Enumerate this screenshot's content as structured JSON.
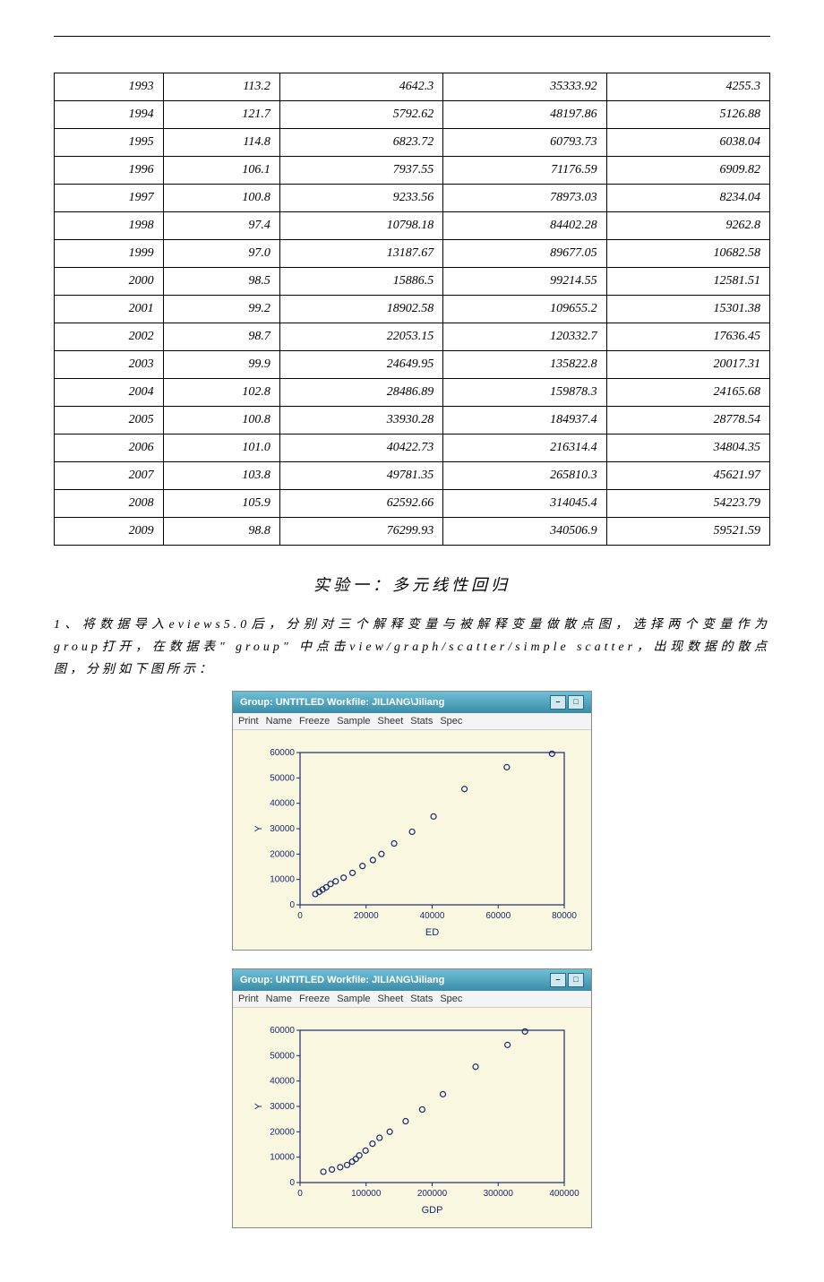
{
  "table": {
    "rows": [
      [
        "1993",
        "113.2",
        "4642.3",
        "35333.92",
        "4255.3"
      ],
      [
        "1994",
        "121.7",
        "5792.62",
        "48197.86",
        "5126.88"
      ],
      [
        "1995",
        "114.8",
        "6823.72",
        "60793.73",
        "6038.04"
      ],
      [
        "1996",
        "106.1",
        "7937.55",
        "71176.59",
        "6909.82"
      ],
      [
        "1997",
        "100.8",
        "9233.56",
        "78973.03",
        "8234.04"
      ],
      [
        "1998",
        "97.4",
        "10798.18",
        "84402.28",
        "9262.8"
      ],
      [
        "1999",
        "97.0",
        "13187.67",
        "89677.05",
        "10682.58"
      ],
      [
        "2000",
        "98.5",
        "15886.5",
        "99214.55",
        "12581.51"
      ],
      [
        "2001",
        "99.2",
        "18902.58",
        "109655.2",
        "15301.38"
      ],
      [
        "2002",
        "98.7",
        "22053.15",
        "120332.7",
        "17636.45"
      ],
      [
        "2003",
        "99.9",
        "24649.95",
        "135822.8",
        "20017.31"
      ],
      [
        "2004",
        "102.8",
        "28486.89",
        "159878.3",
        "24165.68"
      ],
      [
        "2005",
        "100.8",
        "33930.28",
        "184937.4",
        "28778.54"
      ],
      [
        "2006",
        "101.0",
        "40422.73",
        "216314.4",
        "34804.35"
      ],
      [
        "2007",
        "103.8",
        "49781.35",
        "265810.3",
        "45621.97"
      ],
      [
        "2008",
        "105.9",
        "62592.66",
        "314045.4",
        "54223.79"
      ],
      [
        "2009",
        "98.8",
        "76299.93",
        "340506.9",
        "59521.59"
      ]
    ]
  },
  "section_title": "实验一：多元线性回归",
  "body_text": "1、将数据导入eviews5.0后，分别对三个解释变量与被解释变量做散点图，选择两个变量作为group打开，在数据表\" group\" 中点击view/graph/scatter/simple scatter，出现数据的散点图，分别如下图所示：",
  "charts": [
    {
      "window_title": "Group: UNTITLED   Workfile: JILIANG\\Jiliang",
      "toolbar": [
        "Print",
        "Name",
        "Freeze",
        "Sample",
        "Sheet",
        "Stats",
        "Spec"
      ],
      "x_label": "ED",
      "y_label": "Y",
      "x_ticks": [
        0,
        20000,
        40000,
        60000,
        80000
      ],
      "y_ticks": [
        0,
        10000,
        20000,
        30000,
        40000,
        50000,
        60000
      ],
      "x_max": 80000,
      "y_max": 60000,
      "points_x_col": 2,
      "points_y_col": 4,
      "point_color": "#1a2a6c",
      "bg_color": "#faf7e0"
    },
    {
      "window_title": "Group: UNTITLED   Workfile: JILIANG\\Jiliang",
      "toolbar": [
        "Print",
        "Name",
        "Freeze",
        "Sample",
        "Sheet",
        "Stats",
        "Spec"
      ],
      "x_label": "GDP",
      "y_label": "Y",
      "x_ticks": [
        0,
        100000,
        200000,
        300000,
        400000
      ],
      "y_ticks": [
        0,
        10000,
        20000,
        30000,
        40000,
        50000,
        60000
      ],
      "x_max": 400000,
      "y_max": 60000,
      "points_x_col": 3,
      "points_y_col": 4,
      "point_color": "#1a2a6c",
      "bg_color": "#faf7e0"
    }
  ]
}
